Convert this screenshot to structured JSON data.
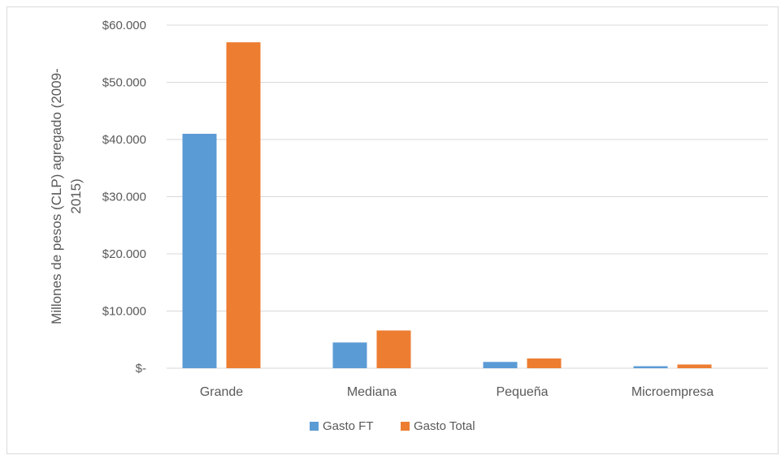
{
  "chart_data": {
    "type": "bar",
    "categories": [
      "Grande",
      "Mediana",
      "Pequeña",
      "Microempresa"
    ],
    "series": [
      {
        "name": "Gasto FT",
        "color": "#5b9bd5",
        "values": [
          41000,
          4500,
          1100,
          350
        ]
      },
      {
        "name": "Gasto Total",
        "color": "#ed7d31",
        "values": [
          57000,
          6600,
          1700,
          650
        ]
      }
    ],
    "ylim": [
      0,
      60000
    ],
    "yticks": [
      {
        "value": 0,
        "label": "$-"
      },
      {
        "value": 10000,
        "label": "$10.000"
      },
      {
        "value": 20000,
        "label": "$20.000"
      },
      {
        "value": 30000,
        "label": "$30.000"
      },
      {
        "value": 40000,
        "label": "$40.000"
      },
      {
        "value": 50000,
        "label": "$50.000"
      },
      {
        "value": 60000,
        "label": "$60.000"
      }
    ],
    "ylabel_lines": [
      "Millones de pesos (CLP) agregado (2009-",
      "2015)"
    ],
    "grid": true,
    "legend_position": "bottom"
  }
}
